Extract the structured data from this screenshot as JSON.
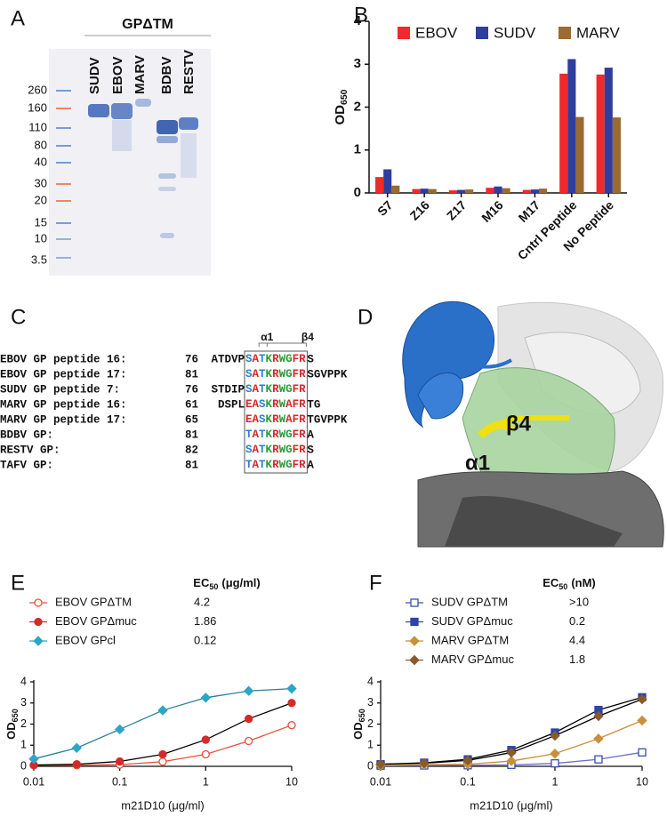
{
  "panel_labels": [
    "A",
    "B",
    "C",
    "D",
    "E",
    "F"
  ],
  "gel": {
    "header": "GPΔTM",
    "lanes": [
      "SUDV",
      "EBOV",
      "MARV",
      "BDBV",
      "RESTV"
    ],
    "markers": [
      "260",
      "160",
      "110",
      "80",
      "40",
      "30",
      "20",
      "15",
      "10",
      "3.5"
    ]
  },
  "alignment": {
    "motifs": [
      "α1",
      "β4"
    ],
    "rows": [
      {
        "name": "EBOV GP peptide 16:",
        "start": 76,
        "before": "ATDVP",
        "motif": "SATKRWGFR",
        "after": "S"
      },
      {
        "name": "EBOV GP peptide 17:",
        "start": 81,
        "motif": "SATKRWGFR",
        "after": "SGVPPK"
      },
      {
        "name": "SUDV GP peptide 7:",
        "start": 76,
        "before": "STDIP",
        "motif": "SATKRWGFR"
      },
      {
        "name": "MARV GP peptide 16:",
        "start": 61,
        "before": "DSPL",
        "motif": "EASKRWAFR",
        "after": "TG"
      },
      {
        "name": "MARV GP peptide 17:",
        "start": 65,
        "motif": "EASKRWAFR",
        "after": "TGVPPK"
      },
      {
        "name": "BDBV GP:",
        "start": 81,
        "motif": "TATKRWGFR",
        "after": "A"
      },
      {
        "name": "RESTV GP:",
        "start": 82,
        "motif": "SATKRWGFR",
        "after": "S"
      },
      {
        "name": "TAFV GP:",
        "start": 81,
        "motif": "TATKRWGFR",
        "after": "A"
      }
    ]
  },
  "structure": {
    "labels": [
      "β4",
      "α1"
    ]
  },
  "chart_data": [
    {
      "type": "bar",
      "y_label": "OD",
      "y_label_sub": "650",
      "categories": [
        "S7",
        "Z16",
        "Z17",
        "M16",
        "M17",
        "Cntrl Peptide",
        "No Peptide"
      ],
      "series": [
        {
          "name": "EBOV",
          "color": "#ee2a2a",
          "values": [
            0.37,
            0.09,
            0.06,
            0.12,
            0.07,
            2.78,
            2.76
          ]
        },
        {
          "name": "SUDV",
          "color": "#2e3e9e",
          "values": [
            0.55,
            0.1,
            0.07,
            0.15,
            0.08,
            3.12,
            2.92
          ]
        },
        {
          "name": "MARV",
          "color": "#9a6a30",
          "values": [
            0.17,
            0.09,
            0.08,
            0.11,
            0.1,
            1.77,
            1.76
          ]
        }
      ],
      "ylim": [
        0,
        4
      ],
      "yticks": [
        0,
        1,
        2,
        3,
        4
      ],
      "legend": "top"
    },
    {
      "type": "line",
      "x_scale": "log",
      "y_label": "OD",
      "y_label_sub": "650",
      "x_label": "m21D10 (μg/ml)",
      "legend_title": "EC",
      "legend_title_sub": "50",
      "legend_title_unit": "(μg/ml)",
      "x": [
        0.01,
        0.0316,
        0.1,
        0.316,
        1,
        3.16,
        10
      ],
      "series": [
        {
          "name": "EBOV GPΔTM",
          "ec50": 4.2,
          "color": "#e8503a",
          "line_color": "#e8503a",
          "marker": "circle",
          "filled": false,
          "values": [
            0.05,
            0.05,
            0.08,
            0.22,
            0.57,
            1.2,
            1.95
          ]
        },
        {
          "name": "EBOV GPΔmuc",
          "ec50": 1.86,
          "color": "#d42a2a",
          "line_color": "#000000",
          "marker": "circle",
          "filled": true,
          "values": [
            0.06,
            0.1,
            0.23,
            0.57,
            1.26,
            2.25,
            3.0
          ]
        },
        {
          "name": "EBOV GPcl",
          "ec50": 0.12,
          "color": "#2aa7c8",
          "line_color": "#2a7f9a",
          "marker": "diamond",
          "filled": true,
          "values": [
            0.35,
            0.87,
            1.75,
            2.65,
            3.25,
            3.57,
            3.68
          ]
        }
      ],
      "xlim": [
        0.01,
        10
      ],
      "xticks": [
        0.01,
        0.1,
        1,
        10
      ],
      "ylim": [
        0,
        4
      ],
      "yticks": [
        0,
        1,
        2,
        3,
        4
      ]
    },
    {
      "type": "line",
      "x_scale": "log",
      "y_label": "OD",
      "y_label_sub": "650",
      "x_label": "m21D10 (μg/ml)",
      "legend_title": "EC",
      "legend_title_sub": "50",
      "legend_title_unit": "(nM)",
      "x": [
        0.01,
        0.0316,
        0.1,
        0.316,
        1,
        3.16,
        10
      ],
      "series": [
        {
          "name": "SUDV GPΔTM",
          "ec50": ">10",
          "color": "#3a4fb0",
          "line_color": "#6a6fc0",
          "marker": "square",
          "filled": false,
          "values": [
            0.03,
            0.04,
            0.05,
            0.07,
            0.14,
            0.33,
            0.66
          ]
        },
        {
          "name": "SUDV GPΔmuc",
          "ec50": 0.2,
          "color": "#2d44a8",
          "line_color": "#000000",
          "marker": "square",
          "filled": true,
          "values": [
            0.1,
            0.17,
            0.33,
            0.77,
            1.6,
            2.67,
            3.27
          ]
        },
        {
          "name": "MARV GPΔTM",
          "ec50": 4.4,
          "color": "#c8903a",
          "line_color": "#c8903a",
          "marker": "diamond",
          "filled": true,
          "values": [
            0.04,
            0.08,
            0.1,
            0.25,
            0.6,
            1.31,
            2.17
          ]
        },
        {
          "name": "MARV GPΔmuc",
          "ec50": 1.8,
          "color": "#8a5a2a",
          "line_color": "#000000",
          "marker": "diamond",
          "filled": true,
          "values": [
            0.1,
            0.15,
            0.28,
            0.65,
            1.45,
            2.38,
            3.18
          ]
        }
      ],
      "xlim": [
        0.01,
        10
      ],
      "xticks": [
        0.01,
        0.1,
        1,
        10
      ],
      "ylim": [
        0,
        4
      ],
      "yticks": [
        0,
        1,
        2,
        3,
        4
      ]
    }
  ]
}
